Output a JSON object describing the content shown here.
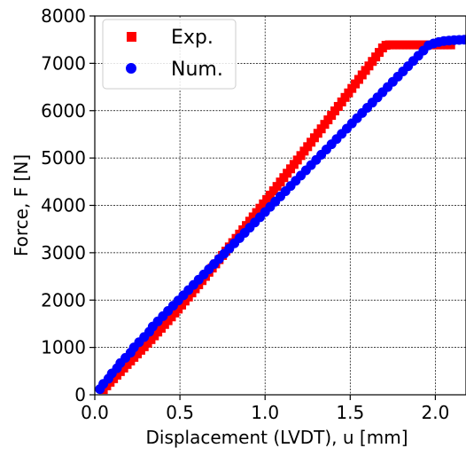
{
  "chart_data": {
    "type": "scatter",
    "xlabel": "Displacement (LVDT), u [mm]",
    "ylabel": "Force, F [N]",
    "xlim": [
      0.0,
      2.18
    ],
    "ylim": [
      0,
      8000
    ],
    "xticks": [
      "0.0",
      "0.5",
      "1.0",
      "1.5",
      "2.0"
    ],
    "xtick_values": [
      0.0,
      0.5,
      1.0,
      1.5,
      2.0
    ],
    "yticks": [
      "0",
      "1000",
      "2000",
      "3000",
      "4000",
      "5000",
      "6000",
      "7000",
      "8000"
    ],
    "ytick_values": [
      0,
      1000,
      2000,
      3000,
      4000,
      5000,
      6000,
      7000,
      8000
    ],
    "grid": true,
    "legend_position": "top-left",
    "series": [
      {
        "name": "Exp.",
        "marker": "square",
        "color": "#ff0000",
        "x": [
          0.05,
          0.07,
          0.09,
          0.11,
          0.13,
          0.15,
          0.17,
          0.19,
          0.21,
          0.23,
          0.25,
          0.27,
          0.29,
          0.31,
          0.33,
          0.35,
          0.37,
          0.39,
          0.41,
          0.43,
          0.45,
          0.47,
          0.49,
          0.51,
          0.53,
          0.55,
          0.57,
          0.59,
          0.61,
          0.63,
          0.65,
          0.67,
          0.69,
          0.71,
          0.73,
          0.75,
          0.77,
          0.79,
          0.81,
          0.83,
          0.85,
          0.87,
          0.89,
          0.91,
          0.93,
          0.95,
          0.97,
          0.99,
          1.01,
          1.03,
          1.05,
          1.07,
          1.09,
          1.11,
          1.13,
          1.15,
          1.17,
          1.19,
          1.21,
          1.23,
          1.25,
          1.27,
          1.29,
          1.31,
          1.33,
          1.35,
          1.37,
          1.39,
          1.41,
          1.43,
          1.45,
          1.47,
          1.49,
          1.51,
          1.53,
          1.55,
          1.57,
          1.59,
          1.61,
          1.63,
          1.65,
          1.67,
          1.69,
          1.71,
          1.73,
          1.75,
          1.77,
          1.79,
          1.81,
          1.83,
          1.85,
          1.87,
          1.89,
          1.91,
          1.93,
          1.95,
          1.97,
          1.99,
          2.01,
          2.03,
          2.05,
          2.07,
          2.09
        ],
        "y": [
          110,
          190,
          265,
          340,
          415,
          490,
          565,
          640,
          715,
          790,
          865,
          940,
          1015,
          1090,
          1165,
          1245,
          1325,
          1405,
          1485,
          1565,
          1645,
          1728,
          1810,
          1895,
          1980,
          2065,
          2152,
          2238,
          2325,
          2412,
          2500,
          2588,
          2676,
          2765,
          2854,
          2943,
          3033,
          3123,
          3213,
          3303,
          3393,
          3484,
          3575,
          3666,
          3757,
          3848,
          3940,
          4032,
          4124,
          4216,
          4308,
          4400,
          4493,
          4586,
          4679,
          4772,
          4865,
          4958,
          5052,
          5146,
          5240,
          5334,
          5428,
          5522,
          5616,
          5711,
          5806,
          5900,
          5995,
          6090,
          6185,
          6280,
          6375,
          6470,
          6565,
          6660,
          6755,
          6850,
          6945,
          7040,
          7135,
          7230,
          7325,
          7380,
          7390,
          7390,
          7390,
          7390,
          7390,
          7390,
          7390,
          7390,
          7390,
          7390,
          7390,
          7390,
          7390,
          7390,
          7390,
          7390,
          7390,
          7390,
          7390
        ]
      },
      {
        "name": "Num.",
        "marker": "circle",
        "color": "#0000ff",
        "x": [
          0.03,
          0.05,
          0.08,
          0.1,
          0.13,
          0.15,
          0.18,
          0.21,
          0.23,
          0.26,
          0.29,
          0.32,
          0.34,
          0.37,
          0.4,
          0.43,
          0.46,
          0.49,
          0.52,
          0.55,
          0.58,
          0.61,
          0.64,
          0.67,
          0.7,
          0.73,
          0.76,
          0.79,
          0.82,
          0.85,
          0.88,
          0.91,
          0.94,
          0.97,
          1.0,
          1.03,
          1.06,
          1.09,
          1.12,
          1.15,
          1.18,
          1.21,
          1.24,
          1.27,
          1.3,
          1.33,
          1.36,
          1.39,
          1.42,
          1.45,
          1.48,
          1.51,
          1.54,
          1.57,
          1.6,
          1.63,
          1.66,
          1.69,
          1.72,
          1.75,
          1.78,
          1.81,
          1.84,
          1.87,
          1.9,
          1.93,
          1.96,
          1.99,
          2.02,
          2.05,
          2.08,
          2.11,
          2.14,
          2.17
        ],
        "y": [
          120,
          230,
          340,
          450,
          560,
          670,
          780,
          890,
          1000,
          1110,
          1220,
          1330,
          1440,
          1550,
          1660,
          1770,
          1880,
          1990,
          2100,
          2210,
          2320,
          2430,
          2540,
          2650,
          2760,
          2870,
          2980,
          3090,
          3200,
          3310,
          3420,
          3530,
          3640,
          3750,
          3860,
          3970,
          4080,
          4190,
          4300,
          4410,
          4520,
          4630,
          4740,
          4850,
          4960,
          5070,
          5180,
          5290,
          5400,
          5510,
          5620,
          5730,
          5840,
          5950,
          6060,
          6170,
          6280,
          6390,
          6500,
          6610,
          6720,
          6830,
          6940,
          7050,
          7160,
          7270,
          7380,
          7420,
          7450,
          7470,
          7480,
          7490,
          7495,
          7500
        ]
      }
    ],
    "legend": [
      {
        "label": "Exp.",
        "marker": "square",
        "color": "#ff0000"
      },
      {
        "label": "Num.",
        "marker": "circle",
        "color": "#0000ff"
      }
    ]
  }
}
